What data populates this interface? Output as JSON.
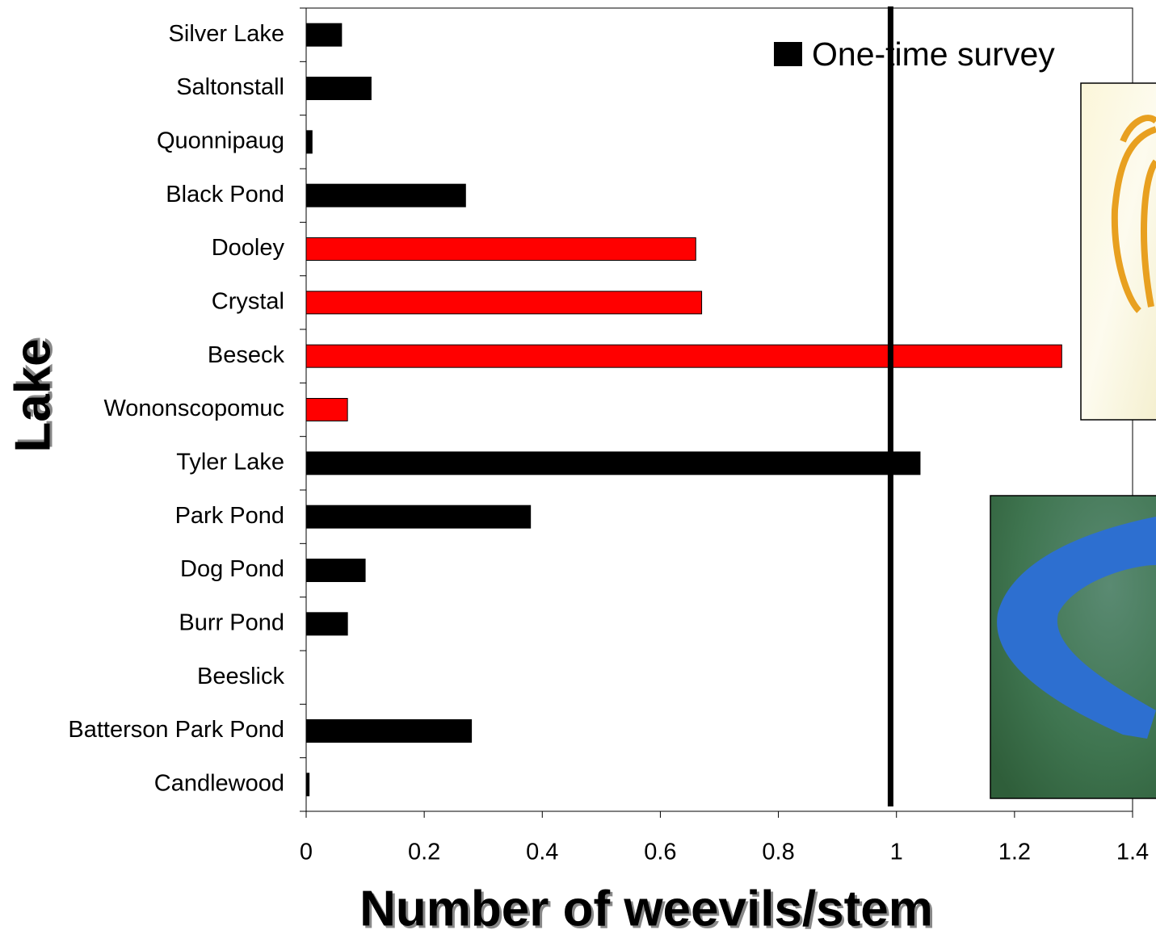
{
  "chart_data": {
    "type": "bar",
    "orientation": "horizontal",
    "x_label": "Number of weevils/stem",
    "y_label": "Lake",
    "categories": [
      "Silver Lake",
      "Saltonstall",
      "Quonnipaug",
      "Black Pond",
      "Dooley",
      "Crystal",
      "Beseck",
      "Wononscopomuc",
      "Tyler Lake",
      "Park Pond",
      "Dog Pond",
      "Burr Pond",
      "Beeslick",
      "Batterson Park Pond",
      "Candlewood"
    ],
    "series": [
      {
        "name": "One-time survey",
        "color": "#000000",
        "colors": [
          "#000000",
          "#000000",
          "#000000",
          "#000000",
          "#ff0000",
          "#ff0000",
          "#ff0000",
          "#ff0000",
          "#000000",
          "#000000",
          "#000000",
          "#000000",
          "#000000",
          "#000000",
          "#000000"
        ],
        "values": [
          0.06,
          0.11,
          0.01,
          0.27,
          0.66,
          0.67,
          1.28,
          0.07,
          1.04,
          0.38,
          0.1,
          0.07,
          0,
          0.28,
          0.005
        ]
      }
    ],
    "reference_line": 0.99,
    "xlim": [
      0,
      1.4
    ],
    "xticks": [
      0,
      0.2,
      0.4,
      0.6,
      0.8,
      1,
      1.2,
      1.4
    ],
    "legend": "top-right"
  }
}
